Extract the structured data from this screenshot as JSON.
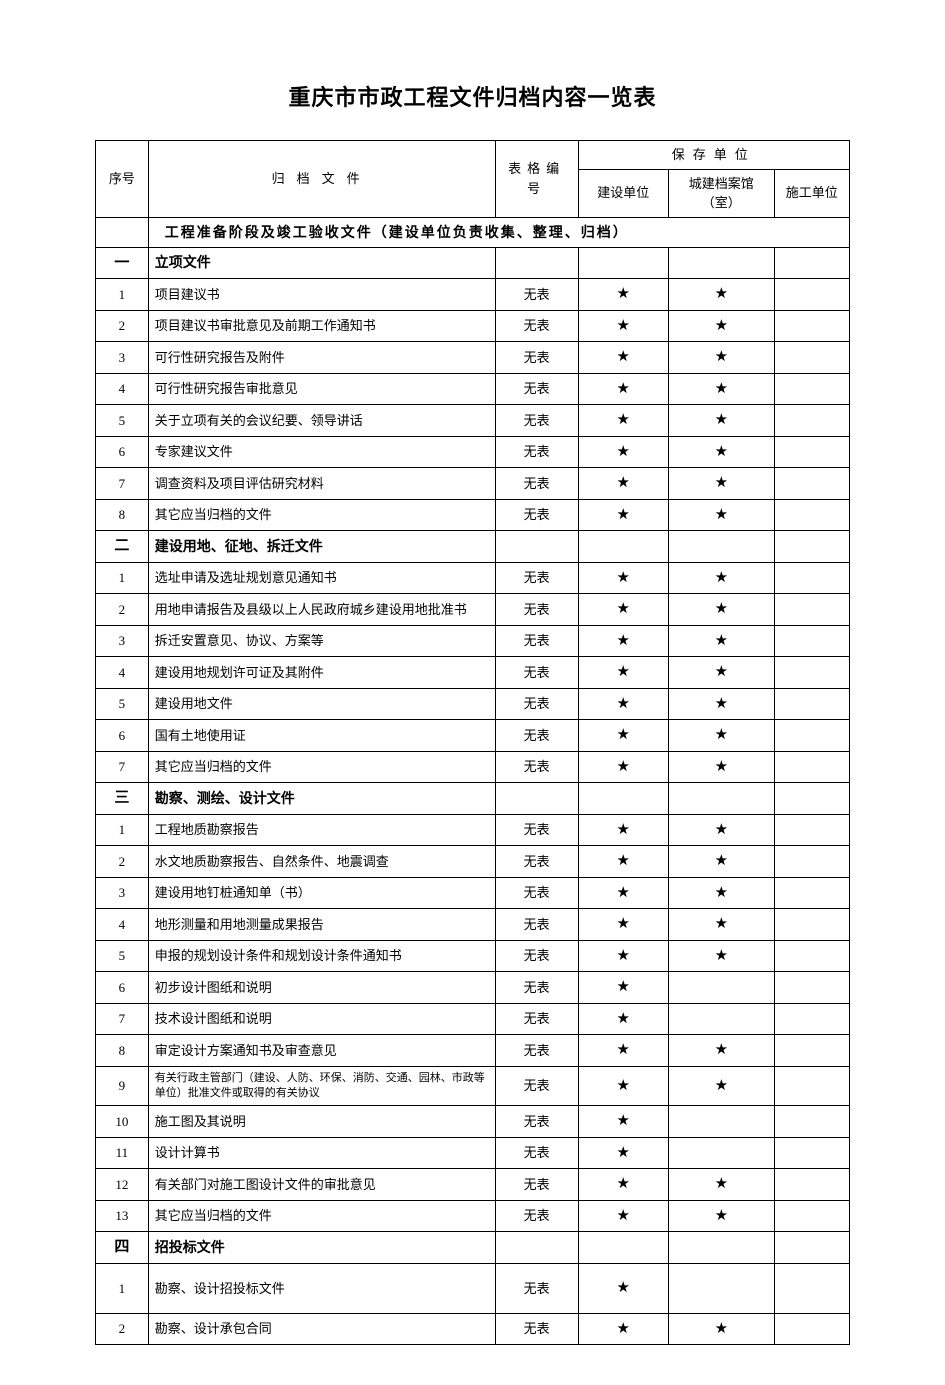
{
  "title": "重庆市市政工程文件归档内容一览表",
  "headers": {
    "seq": "序号",
    "file": "归档文件",
    "form": "表格编号",
    "preserve": "保存单位",
    "unit1": "建设单位",
    "unit2": "城建档案馆（室）",
    "unit3": "施工单位"
  },
  "section_header": "工程准备阶段及竣工验收文件（建设单位负责收集、整理、归档）",
  "star": "★",
  "no_form": "无表",
  "groups": [
    {
      "num": "一",
      "title": "立项文件",
      "rows": [
        {
          "seq": "1",
          "file": "项目建议书",
          "form": "无表",
          "u1": true,
          "u2": true,
          "u3": false
        },
        {
          "seq": "2",
          "file": "项目建议书审批意见及前期工作通知书",
          "form": "无表",
          "u1": true,
          "u2": true,
          "u3": false
        },
        {
          "seq": "3",
          "file": "可行性研究报告及附件",
          "form": "无表",
          "u1": true,
          "u2": true,
          "u3": false
        },
        {
          "seq": "4",
          "file": "可行性研究报告审批意见",
          "form": "无表",
          "u1": true,
          "u2": true,
          "u3": false
        },
        {
          "seq": "5",
          "file": "关于立项有关的会议纪要、领导讲话",
          "form": "无表",
          "u1": true,
          "u2": true,
          "u3": false
        },
        {
          "seq": "6",
          "file": "专家建议文件",
          "form": "无表",
          "u1": true,
          "u2": true,
          "u3": false
        },
        {
          "seq": "7",
          "file": "调查资料及项目评估研究材料",
          "form": "无表",
          "u1": true,
          "u2": true,
          "u3": false
        },
        {
          "seq": "8",
          "file": "其它应当归档的文件",
          "form": "无表",
          "u1": true,
          "u2": true,
          "u3": false
        }
      ]
    },
    {
      "num": "二",
      "title": "建设用地、征地、拆迁文件",
      "rows": [
        {
          "seq": "1",
          "file": "选址申请及选址规划意见通知书",
          "form": "无表",
          "u1": true,
          "u2": true,
          "u3": false
        },
        {
          "seq": "2",
          "file": "用地申请报告及县级以上人民政府城乡建设用地批准书",
          "form": "无表",
          "u1": true,
          "u2": true,
          "u3": false
        },
        {
          "seq": "3",
          "file": "拆迁安置意见、协议、方案等",
          "form": "无表",
          "u1": true,
          "u2": true,
          "u3": false
        },
        {
          "seq": "4",
          "file": "建设用地规划许可证及其附件",
          "form": "无表",
          "u1": true,
          "u2": true,
          "u3": false
        },
        {
          "seq": "5",
          "file": "建设用地文件",
          "form": "无表",
          "u1": true,
          "u2": true,
          "u3": false
        },
        {
          "seq": "6",
          "file": "国有土地使用证",
          "form": "无表",
          "u1": true,
          "u2": true,
          "u3": false
        },
        {
          "seq": "7",
          "file": "其它应当归档的文件",
          "form": "无表",
          "u1": true,
          "u2": true,
          "u3": false
        }
      ]
    },
    {
      "num": "三",
      "title": "勘察、测绘、设计文件",
      "rows": [
        {
          "seq": "1",
          "file": "工程地质勘察报告",
          "form": "无表",
          "u1": true,
          "u2": true,
          "u3": false
        },
        {
          "seq": "2",
          "file": "水文地质勘察报告、自然条件、地震调查",
          "form": "无表",
          "u1": true,
          "u2": true,
          "u3": false
        },
        {
          "seq": "3",
          "file": "建设用地钉桩通知单（书）",
          "form": "无表",
          "u1": true,
          "u2": true,
          "u3": false
        },
        {
          "seq": "4",
          "file": "地形测量和用地测量成果报告",
          "form": "无表",
          "u1": true,
          "u2": true,
          "u3": false
        },
        {
          "seq": "5",
          "file": "申报的规划设计条件和规划设计条件通知书",
          "form": "无表",
          "u1": true,
          "u2": true,
          "u3": false
        },
        {
          "seq": "6",
          "file": "初步设计图纸和说明",
          "form": "无表",
          "u1": true,
          "u2": false,
          "u3": false
        },
        {
          "seq": "7",
          "file": "技术设计图纸和说明",
          "form": "无表",
          "u1": true,
          "u2": false,
          "u3": false
        },
        {
          "seq": "8",
          "file": "审定设计方案通知书及审查意见",
          "form": "无表",
          "u1": true,
          "u2": true,
          "u3": false
        },
        {
          "seq": "9",
          "file": "有关行政主管部门（建设、人防、环保、消防、交通、园林、市政等单位）批准文件或取得的有关协议",
          "form": "无表",
          "u1": true,
          "u2": true,
          "u3": false,
          "small": true
        },
        {
          "seq": "10",
          "file": "施工图及其说明",
          "form": "无表",
          "u1": true,
          "u2": false,
          "u3": false
        },
        {
          "seq": "11",
          "file": "设计计算书",
          "form": "无表",
          "u1": true,
          "u2": false,
          "u3": false
        },
        {
          "seq": "12",
          "file": "有关部门对施工图设计文件的审批意见",
          "form": "无表",
          "u1": true,
          "u2": true,
          "u3": false
        },
        {
          "seq": "13",
          "file": "其它应当归档的文件",
          "form": "无表",
          "u1": true,
          "u2": true,
          "u3": false
        }
      ]
    },
    {
      "num": "四",
      "title": "招投标文件",
      "rows": [
        {
          "seq": "1",
          "file": "勘察、设计招投标文件",
          "form": "无表",
          "u1": true,
          "u2": false,
          "u3": false,
          "tall": true
        },
        {
          "seq": "2",
          "file": "勘察、设计承包合同",
          "form": "无表",
          "u1": true,
          "u2": true,
          "u3": false
        }
      ]
    }
  ]
}
